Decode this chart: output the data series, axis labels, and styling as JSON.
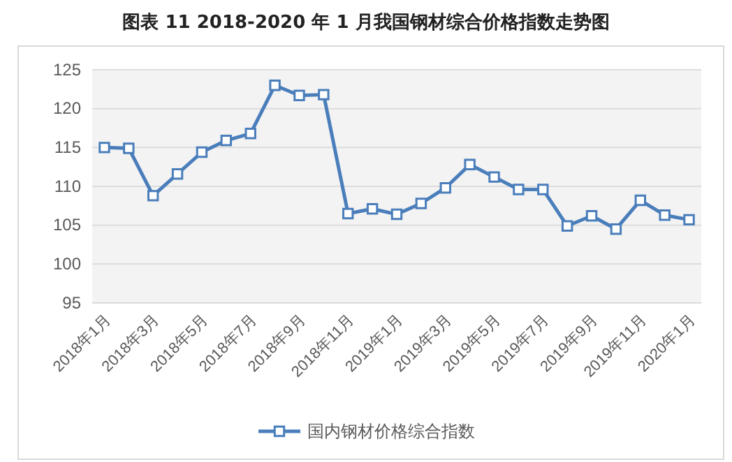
{
  "chart_data": {
    "type": "line",
    "title": "图表 11 2018-2020 年 1 月我国钢材综合价格指数走势图",
    "categories": [
      "2018年1月",
      null,
      "2018年3月",
      null,
      "2018年5月",
      null,
      "2018年7月",
      null,
      "2018年9月",
      null,
      "2018年11月",
      null,
      "2019年1月",
      null,
      "2019年3月",
      null,
      "2019年5月",
      null,
      "2019年7月",
      null,
      "2019年9月",
      null,
      "2019年11月",
      null,
      "2020年1月"
    ],
    "series": [
      {
        "name": "国内钢材价格综合指数",
        "color": "#4a7ebb",
        "values": [
          115,
          114.9,
          108.8,
          111.6,
          114.4,
          115.9,
          116.8,
          123,
          121.7,
          121.8,
          106.5,
          107.1,
          106.4,
          107.8,
          109.8,
          112.8,
          111.2,
          109.6,
          109.6,
          104.9,
          106.2,
          104.5,
          108.2,
          106.3,
          105.7
        ]
      }
    ],
    "ylim": [
      95,
      125
    ],
    "yticks": [
      95,
      100,
      105,
      110,
      115,
      120,
      125
    ],
    "grid": "y",
    "legend": "bottom",
    "marker": "square",
    "line_style": "solid"
  }
}
